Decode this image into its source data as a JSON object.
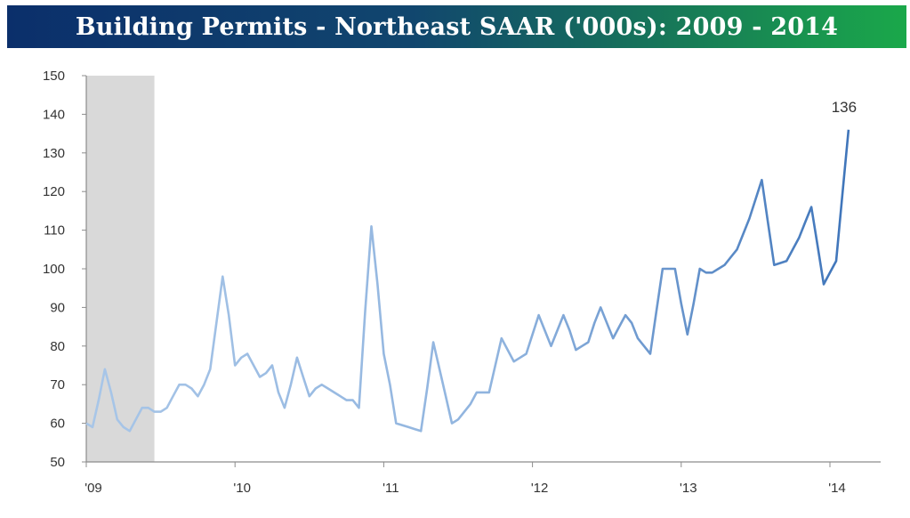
{
  "chart_data": {
    "type": "line",
    "title": "Building Permits - Northeast SAAR ('000s): 2009 - 2014",
    "xlabel": "",
    "ylabel": "",
    "ylim": [
      50,
      150
    ],
    "yticks": [
      50,
      60,
      70,
      80,
      90,
      100,
      110,
      120,
      130,
      140,
      150
    ],
    "xticks": [
      {
        "value": 2009,
        "label": "'09"
      },
      {
        "value": 2010,
        "label": "'10"
      },
      {
        "value": 2011,
        "label": "'11"
      },
      {
        "value": 2012,
        "label": "'12"
      },
      {
        "value": 2013,
        "label": "'13"
      },
      {
        "value": 2014,
        "label": "'14"
      }
    ],
    "xlim": [
      2009,
      2014.333
    ],
    "recession_shading": [
      2009,
      2009.458
    ],
    "grid": false,
    "series": [
      {
        "color": "#4a7ebf",
        "points": [
          [
            2009.0,
            60
          ],
          [
            2009.042,
            59
          ],
          [
            2009.083,
            66
          ],
          [
            2009.125,
            74
          ],
          [
            2009.167,
            68
          ],
          [
            2009.208,
            61
          ],
          [
            2009.25,
            59
          ],
          [
            2009.292,
            58
          ],
          [
            2009.333,
            61
          ],
          [
            2009.375,
            64
          ],
          [
            2009.417,
            64
          ],
          [
            2009.458,
            63
          ],
          [
            2009.5,
            63
          ],
          [
            2009.542,
            64
          ],
          [
            2009.583,
            67
          ],
          [
            2009.625,
            70
          ],
          [
            2009.667,
            70
          ],
          [
            2009.708,
            69
          ],
          [
            2009.75,
            67
          ],
          [
            2009.792,
            70
          ],
          [
            2009.833,
            74
          ],
          [
            2009.875,
            86
          ],
          [
            2009.917,
            98
          ],
          [
            2009.958,
            88
          ],
          [
            2010.0,
            75
          ],
          [
            2010.042,
            77
          ],
          [
            2010.083,
            78
          ],
          [
            2010.125,
            75
          ],
          [
            2010.167,
            72
          ],
          [
            2010.208,
            73
          ],
          [
            2010.25,
            75
          ],
          [
            2010.292,
            68
          ],
          [
            2010.333,
            64
          ],
          [
            2010.375,
            70
          ],
          [
            2010.417,
            77
          ],
          [
            2010.458,
            72
          ],
          [
            2010.5,
            67
          ],
          [
            2010.542,
            69
          ],
          [
            2010.583,
            70
          ],
          [
            2010.625,
            69
          ],
          [
            2010.667,
            68
          ],
          [
            2010.708,
            67
          ],
          [
            2010.75,
            66
          ],
          [
            2010.792,
            66
          ],
          [
            2010.833,
            64
          ],
          [
            2010.875,
            89
          ],
          [
            2010.917,
            111
          ],
          [
            2010.958,
            96
          ],
          [
            2011.0,
            78
          ],
          [
            2011.042,
            70
          ],
          [
            2011.083,
            60
          ],
          [
            2011.125,
            59.5
          ],
          [
            2011.167,
            59
          ],
          [
            2011.208,
            58.5
          ],
          [
            2011.25,
            58
          ],
          [
            2011.292,
            69
          ],
          [
            2011.333,
            81
          ],
          [
            2011.375,
            74
          ],
          [
            2011.417,
            67
          ],
          [
            2011.458,
            60
          ],
          [
            2011.5,
            61
          ],
          [
            2011.542,
            63
          ],
          [
            2011.583,
            65
          ],
          [
            2011.625,
            68
          ],
          [
            2011.667,
            68
          ],
          [
            2011.708,
            68
          ],
          [
            2011.75,
            75
          ],
          [
            2011.792,
            82
          ],
          [
            2011.833,
            79
          ],
          [
            2011.875,
            76
          ],
          [
            2011.917,
            77
          ],
          [
            2011.958,
            78
          ],
          [
            2012.0,
            83
          ],
          [
            2012.042,
            88
          ],
          [
            2012.083,
            84
          ],
          [
            2012.125,
            80
          ],
          [
            2012.167,
            84
          ],
          [
            2012.208,
            88
          ],
          [
            2012.25,
            84
          ],
          [
            2012.292,
            79
          ],
          [
            2012.333,
            80
          ],
          [
            2012.375,
            81
          ],
          [
            2012.417,
            86
          ],
          [
            2012.458,
            90
          ],
          [
            2012.5,
            86
          ],
          [
            2012.542,
            82
          ],
          [
            2012.583,
            85
          ],
          [
            2012.625,
            88
          ],
          [
            2012.667,
            86
          ],
          [
            2012.708,
            82
          ],
          [
            2012.75,
            80
          ],
          [
            2012.792,
            78
          ],
          [
            2012.833,
            89
          ],
          [
            2012.875,
            100
          ],
          [
            2012.917,
            100
          ],
          [
            2012.958,
            100
          ],
          [
            2013.0,
            91
          ],
          [
            2013.042,
            83
          ],
          [
            2013.083,
            91
          ],
          [
            2013.125,
            100
          ],
          [
            2013.167,
            99
          ],
          [
            2013.208,
            99
          ],
          [
            2013.25,
            100
          ],
          [
            2013.292,
            101
          ],
          [
            2013.333,
            103
          ],
          [
            2013.375,
            105
          ],
          [
            2013.417,
            109
          ],
          [
            2013.458,
            113
          ],
          [
            2013.5,
            118
          ],
          [
            2013.542,
            123
          ],
          [
            2013.583,
            112
          ],
          [
            2013.625,
            101
          ],
          [
            2013.667,
            101.5
          ],
          [
            2013.708,
            102
          ],
          [
            2013.75,
            105
          ],
          [
            2013.792,
            108
          ],
          [
            2013.833,
            112
          ],
          [
            2013.875,
            116
          ],
          [
            2013.917,
            106
          ],
          [
            2013.958,
            96
          ],
          [
            2014.0,
            99
          ],
          [
            2014.042,
            102
          ],
          [
            2014.083,
            119
          ],
          [
            2014.125,
            136
          ]
        ]
      }
    ],
    "annotations": [
      {
        "x": 2014.125,
        "y": 136,
        "text": "136"
      }
    ]
  }
}
